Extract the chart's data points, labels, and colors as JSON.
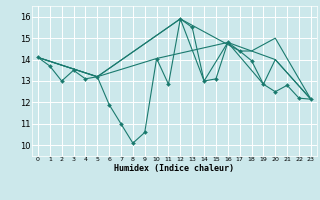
{
  "xlabel": "Humidex (Indice chaleur)",
  "bg_color": "#cce8eb",
  "grid_color": "#ffffff",
  "line_color": "#1a7a6e",
  "xlim": [
    -0.5,
    23.5
  ],
  "ylim": [
    9.5,
    16.5
  ],
  "xticks": [
    0,
    1,
    2,
    3,
    4,
    5,
    6,
    7,
    8,
    9,
    10,
    11,
    12,
    13,
    14,
    15,
    16,
    17,
    18,
    19,
    20,
    21,
    22,
    23
  ],
  "yticks": [
    10,
    11,
    12,
    13,
    14,
    15,
    16
  ],
  "main_line": {
    "x": [
      0,
      1,
      2,
      3,
      4,
      5,
      6,
      7,
      8,
      9,
      10,
      11,
      12,
      13,
      14,
      15,
      16,
      17,
      18,
      19,
      20,
      21,
      22,
      23
    ],
    "y": [
      14.1,
      13.7,
      13.0,
      13.5,
      13.1,
      13.2,
      11.9,
      11.0,
      10.1,
      10.6,
      14.05,
      12.85,
      15.9,
      15.5,
      13.0,
      13.1,
      14.8,
      14.4,
      13.95,
      12.85,
      12.5,
      12.8,
      12.2,
      12.15
    ]
  },
  "extra_lines": [
    {
      "x": [
        0,
        5,
        12,
        14,
        16,
        19,
        20,
        23
      ],
      "y": [
        14.1,
        13.2,
        15.9,
        13.0,
        14.8,
        12.85,
        14.0,
        12.15
      ]
    },
    {
      "x": [
        0,
        5,
        12,
        17,
        18,
        20,
        23
      ],
      "y": [
        14.1,
        13.2,
        15.9,
        14.4,
        14.4,
        15.0,
        12.15
      ]
    },
    {
      "x": [
        0,
        5,
        10,
        16,
        20,
        23
      ],
      "y": [
        14.1,
        13.2,
        14.05,
        14.8,
        14.0,
        12.15
      ]
    }
  ],
  "xlabel_fontsize": 6.0,
  "ytick_fontsize": 6.0,
  "xtick_fontsize": 4.5
}
